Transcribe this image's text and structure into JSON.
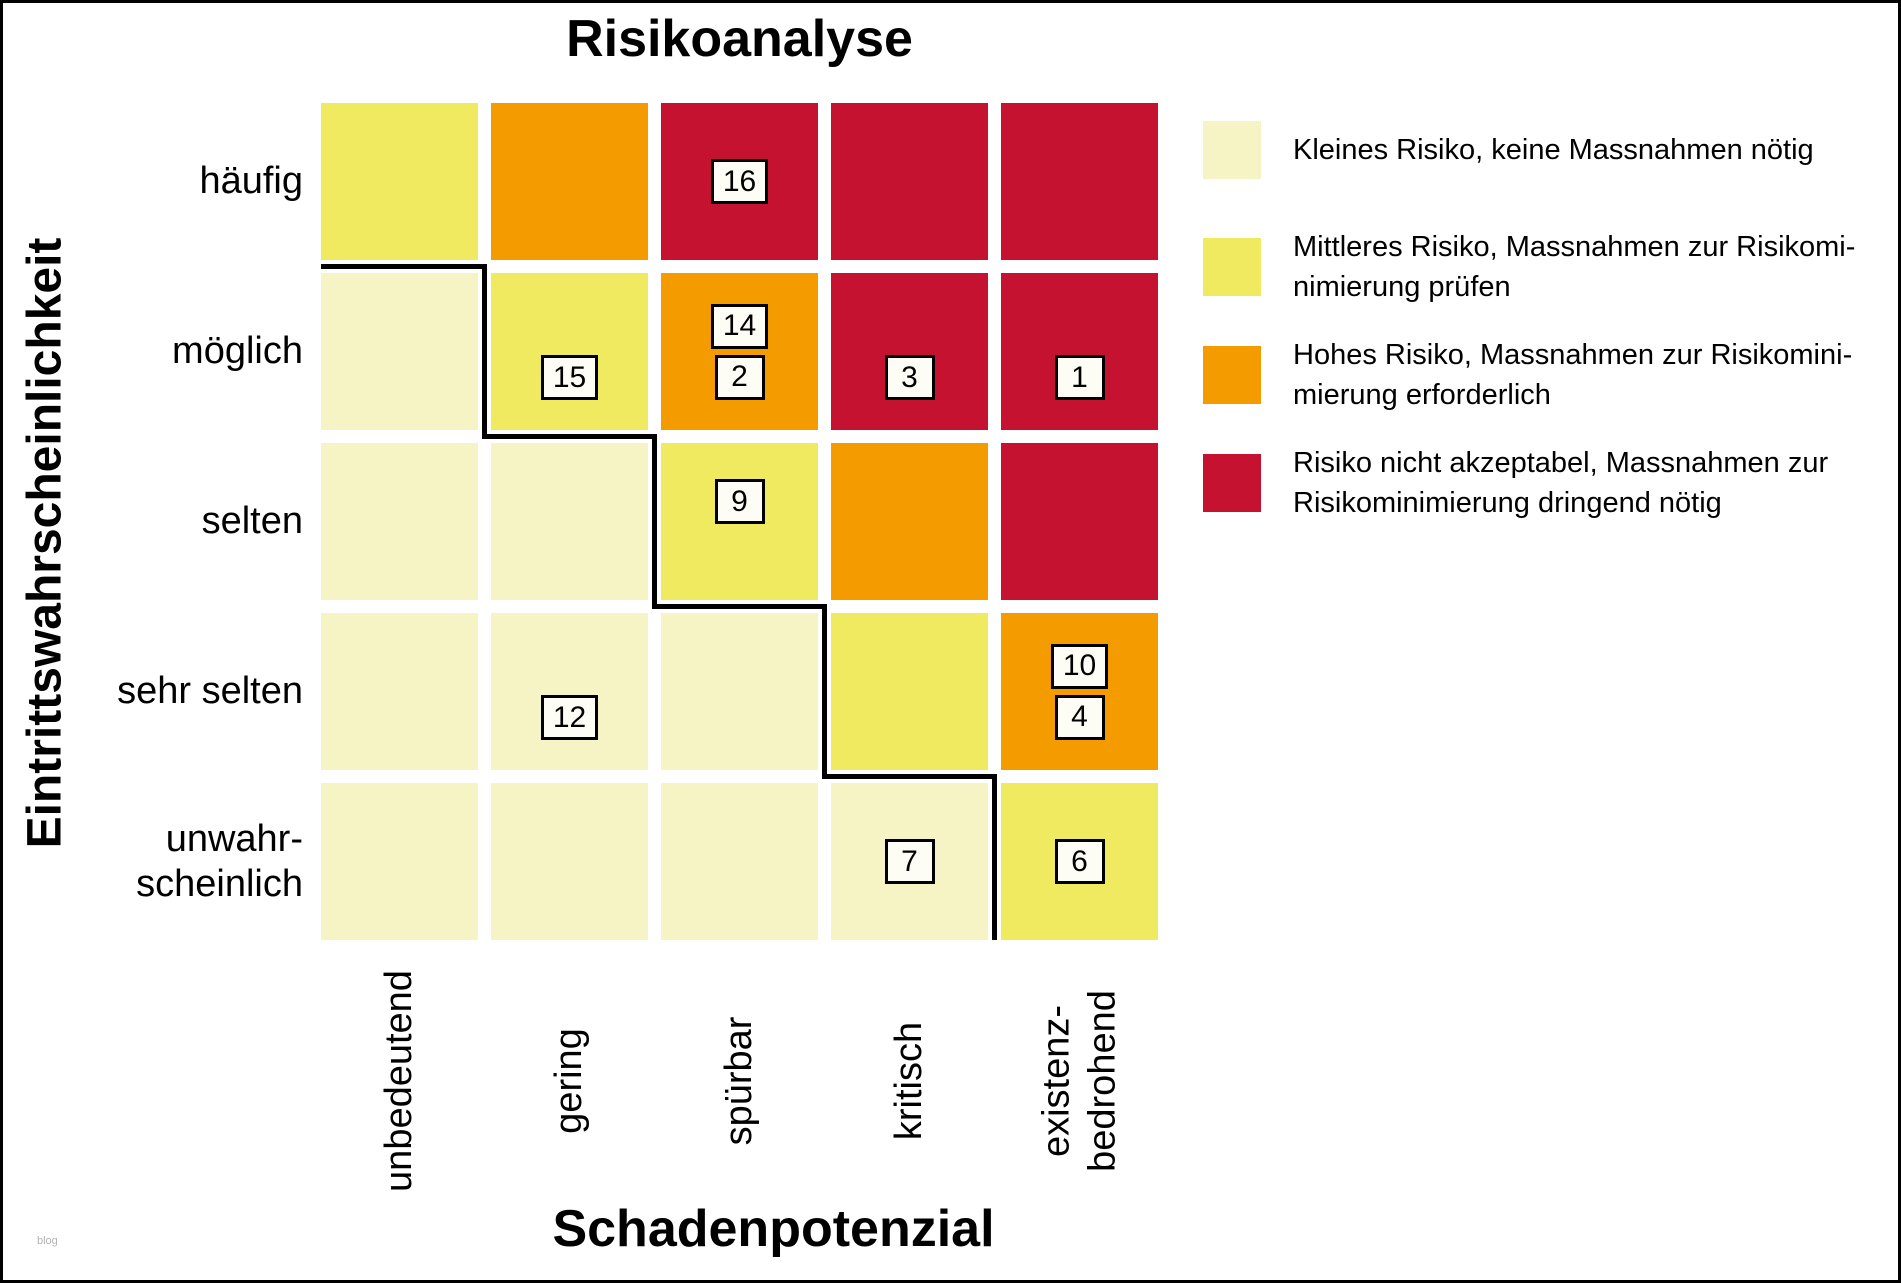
{
  "title": "Risikoanalyse",
  "x_axis_label": "Schadenpotenzial",
  "y_axis_label": "Eintrittswahrscheinlichkeit",
  "watermark": "blog",
  "colors": {
    "low": "#F6F3C4",
    "medium": "#F0EA60",
    "high": "#F49B00",
    "critical": "#C51230"
  },
  "chart_data": {
    "type": "heatmap",
    "title": "Risikoanalyse",
    "xlabel": "Schadenpotenzial",
    "ylabel": "Eintrittswahrscheinlichkeit",
    "legend_position": "right",
    "row_labels": [
      "häufig",
      "möglich",
      "selten",
      "sehr selten",
      "unwahr-\nscheinlich"
    ],
    "column_labels": [
      "unbedeutend",
      "gering",
      "spürbar",
      "kritisch",
      "existenz-\nbedrohend"
    ],
    "risk_levels": [
      [
        "medium",
        "high",
        "critical",
        "critical",
        "critical"
      ],
      [
        "low",
        "medium",
        "high",
        "critical",
        "critical"
      ],
      [
        "low",
        "low",
        "medium",
        "high",
        "critical"
      ],
      [
        "low",
        "low",
        "low",
        "medium",
        "high"
      ],
      [
        "low",
        "low",
        "low",
        "low",
        "medium"
      ]
    ],
    "markers": [
      {
        "label": "16",
        "row": 0,
        "col": 2,
        "slot": "center"
      },
      {
        "label": "15",
        "row": 1,
        "col": 1,
        "slot": "low"
      },
      {
        "label": "14",
        "row": 1,
        "col": 2,
        "slot": "stack"
      },
      {
        "label": "2",
        "row": 1,
        "col": 2,
        "slot": "stack"
      },
      {
        "label": "3",
        "row": 1,
        "col": 3,
        "slot": "low"
      },
      {
        "label": "1",
        "row": 1,
        "col": 4,
        "slot": "low"
      },
      {
        "label": "9",
        "row": 2,
        "col": 2,
        "slot": "high"
      },
      {
        "label": "12",
        "row": 3,
        "col": 1,
        "slot": "low"
      },
      {
        "label": "10",
        "row": 3,
        "col": 4,
        "slot": "stack"
      },
      {
        "label": "4",
        "row": 3,
        "col": 4,
        "slot": "stack"
      },
      {
        "label": "7",
        "row": 4,
        "col": 3,
        "slot": "center"
      },
      {
        "label": "6",
        "row": 4,
        "col": 4,
        "slot": "center"
      }
    ]
  },
  "legend": {
    "items": [
      {
        "level": "low",
        "label": "Kleines Risiko, keine Massnahmen nötig"
      },
      {
        "level": "medium",
        "label": "Mittleres Risiko, Massnahmen zur Risikomi-\nnimierung prüfen"
      },
      {
        "level": "high",
        "label": "Hohes Risiko, Massnahmen zur Risikomini-\nmierung erforderlich"
      },
      {
        "level": "critical",
        "label": "Risiko nicht akzeptabel, Massnahmen zur\nRisikominimierung dringend nötig"
      }
    ]
  }
}
